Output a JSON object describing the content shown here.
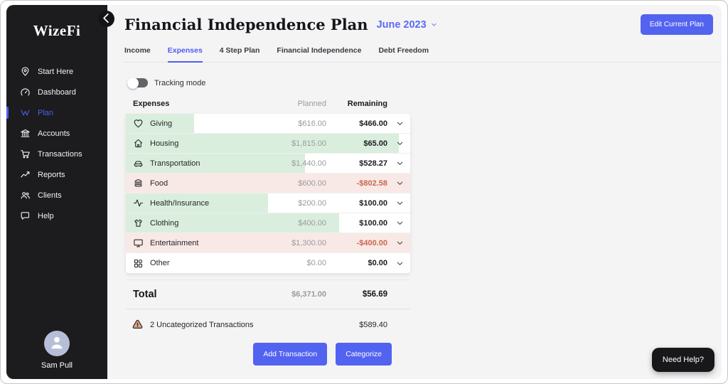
{
  "sidebar": {
    "logo": "WizeFi",
    "items": [
      {
        "label": "Start Here",
        "icon": "pin",
        "active": false
      },
      {
        "label": "Dashboard",
        "icon": "gauge",
        "active": false
      },
      {
        "label": "Plan",
        "icon": "wizefi-w",
        "active": true
      },
      {
        "label": "Accounts",
        "icon": "bank",
        "active": false
      },
      {
        "label": "Transactions",
        "icon": "cart",
        "active": false
      },
      {
        "label": "Reports",
        "icon": "chart",
        "active": false
      },
      {
        "label": "Clients",
        "icon": "people",
        "active": false
      },
      {
        "label": "Help",
        "icon": "chat",
        "active": false
      }
    ],
    "user": {
      "name": "Sam Pull"
    }
  },
  "header": {
    "title": "Financial Independence Plan",
    "period": "June 2023",
    "edit_button": "Edit Current Plan"
  },
  "tabs": [
    {
      "label": "Income",
      "active": false
    },
    {
      "label": "Expenses",
      "active": true
    },
    {
      "label": "4 Step Plan",
      "active": false
    },
    {
      "label": "Financial Independence",
      "active": false
    },
    {
      "label": "Debt Freedom",
      "active": false
    }
  ],
  "tracking": {
    "label": "Tracking mode",
    "enabled": false
  },
  "expenses_table": {
    "columns": {
      "category": "Expenses",
      "planned": "Planned",
      "remaining": "Remaining"
    },
    "rows": [
      {
        "name": "Giving",
        "icon": "heart",
        "planned": "$616.00",
        "remaining": "$466.00",
        "fill_pct": 24,
        "over": false
      },
      {
        "name": "Housing",
        "icon": "house",
        "planned": "$1,815.00",
        "remaining": "$65.00",
        "fill_pct": 96,
        "over": false
      },
      {
        "name": "Transportation",
        "icon": "car",
        "planned": "$1,440.00",
        "remaining": "$528.27",
        "fill_pct": 63,
        "over": false
      },
      {
        "name": "Food",
        "icon": "burger",
        "planned": "$600.00",
        "remaining": "-$802.58",
        "fill_pct": 100,
        "over": true
      },
      {
        "name": "Health/Insurance",
        "icon": "pulse",
        "planned": "$200.00",
        "remaining": "$100.00",
        "fill_pct": 50,
        "over": false
      },
      {
        "name": "Clothing",
        "icon": "shirt",
        "planned": "$400.00",
        "remaining": "$100.00",
        "fill_pct": 75,
        "over": false
      },
      {
        "name": "Entertainment",
        "icon": "monitor",
        "planned": "$1,300.00",
        "remaining": "-$400.00",
        "fill_pct": 100,
        "over": true
      },
      {
        "name": "Other",
        "icon": "grid",
        "planned": "$0.00",
        "remaining": "$0.00",
        "fill_pct": 0,
        "over": false
      }
    ],
    "total": {
      "label": "Total",
      "planned": "$6,371.00",
      "remaining": "$56.69"
    }
  },
  "uncategorized": {
    "label": "2 Uncategorized Transactions",
    "amount": "$589.40"
  },
  "actions": [
    {
      "label": "Add Transaction"
    },
    {
      "label": "Categorize"
    }
  ],
  "help_button": "Need Help?",
  "colors": {
    "accent": "#5263f0",
    "active_nav": "#4d5ef1",
    "under_fill": "#daeedd",
    "over_fill": "#f8e9e6",
    "negative_text": "#c9664f",
    "sidebar_bg": "#1c1c1e",
    "main_bg": "#f4f4f5"
  }
}
